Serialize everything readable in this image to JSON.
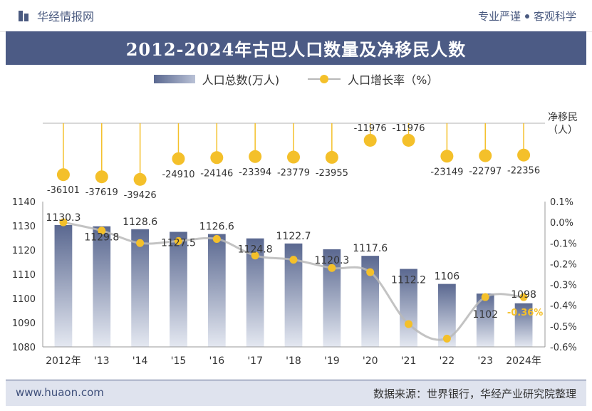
{
  "header": {
    "brand": "华经情报网",
    "slogan_left": "专业严谨",
    "slogan_right": "客观科学"
  },
  "footer": {
    "site": "www.huaon.com",
    "source": "数据来源：世界银行，华经产业研究院整理"
  },
  "colors": {
    "title_bg": "#4c5b85",
    "bar_top": "#5a6890",
    "bar_bottom": "#dfe3ee",
    "marker": "#f4c02a",
    "line": "#b8b8b8",
    "last_label": "#f4c02a"
  },
  "chart_data": {
    "type": "bar+line",
    "title": "2012-2024年古巴人口数量及净移民人数",
    "categories": [
      "2012年",
      "'13",
      "'14",
      "'15",
      "'16",
      "'17",
      "'18",
      "'19",
      "'20",
      "'21",
      "'22",
      "'23",
      "2024年"
    ],
    "series": [
      {
        "name": "人口总数(万人)",
        "type": "bar",
        "values": [
          1130.3,
          1129.8,
          1128.6,
          1127.5,
          1126.6,
          1124.8,
          1122.7,
          1120.3,
          1117.6,
          1112.2,
          1106,
          1102,
          1098
        ],
        "labels": [
          "1130.3",
          "1129.8",
          "1128.6",
          "1127.5",
          "1126.6",
          "1124.8",
          "1122.7",
          "1120.3",
          "1117.6",
          "1112.2",
          "1106",
          "1102",
          "1098"
        ]
      },
      {
        "name": "人口增长率（%）",
        "type": "line",
        "axis": "right",
        "values": [
          0.0,
          -0.04,
          -0.1,
          -0.09,
          -0.08,
          -0.16,
          -0.18,
          -0.22,
          -0.24,
          -0.49,
          -0.56,
          -0.36,
          -0.36
        ],
        "labels": [
          "-0.36%"
        ]
      },
      {
        "name": "净移民（人）",
        "type": "lollipop",
        "values": [
          -36101,
          -37619,
          -39426,
          -24910,
          -24146,
          -23394,
          -23779,
          -23955,
          -11976,
          -11976,
          -23149,
          -22797,
          -22356
        ],
        "labels": [
          "-36101",
          "-37619",
          "-39426",
          "-24910",
          "-24146",
          "-23394",
          "-23779",
          "-23955",
          "-11976",
          "-11976",
          "-23149",
          "-22797",
          "-22356"
        ]
      }
    ],
    "net_migration_axis_label": "净移民",
    "net_migration_axis_unit": "（人）",
    "y_left": {
      "min": 1080,
      "max": 1140,
      "ticks": [
        "1080",
        "1090",
        "1100",
        "1110",
        "1120",
        "1130",
        "1140"
      ]
    },
    "y_right": {
      "min": -0.6,
      "max": 0.1,
      "ticks": [
        "0.1%",
        "0.0%",
        "-0.1%",
        "-0.2%",
        "-0.3%",
        "-0.4%",
        "-0.5%",
        "-0.6%"
      ]
    },
    "migration_range": [
      -45000,
      0
    ]
  }
}
